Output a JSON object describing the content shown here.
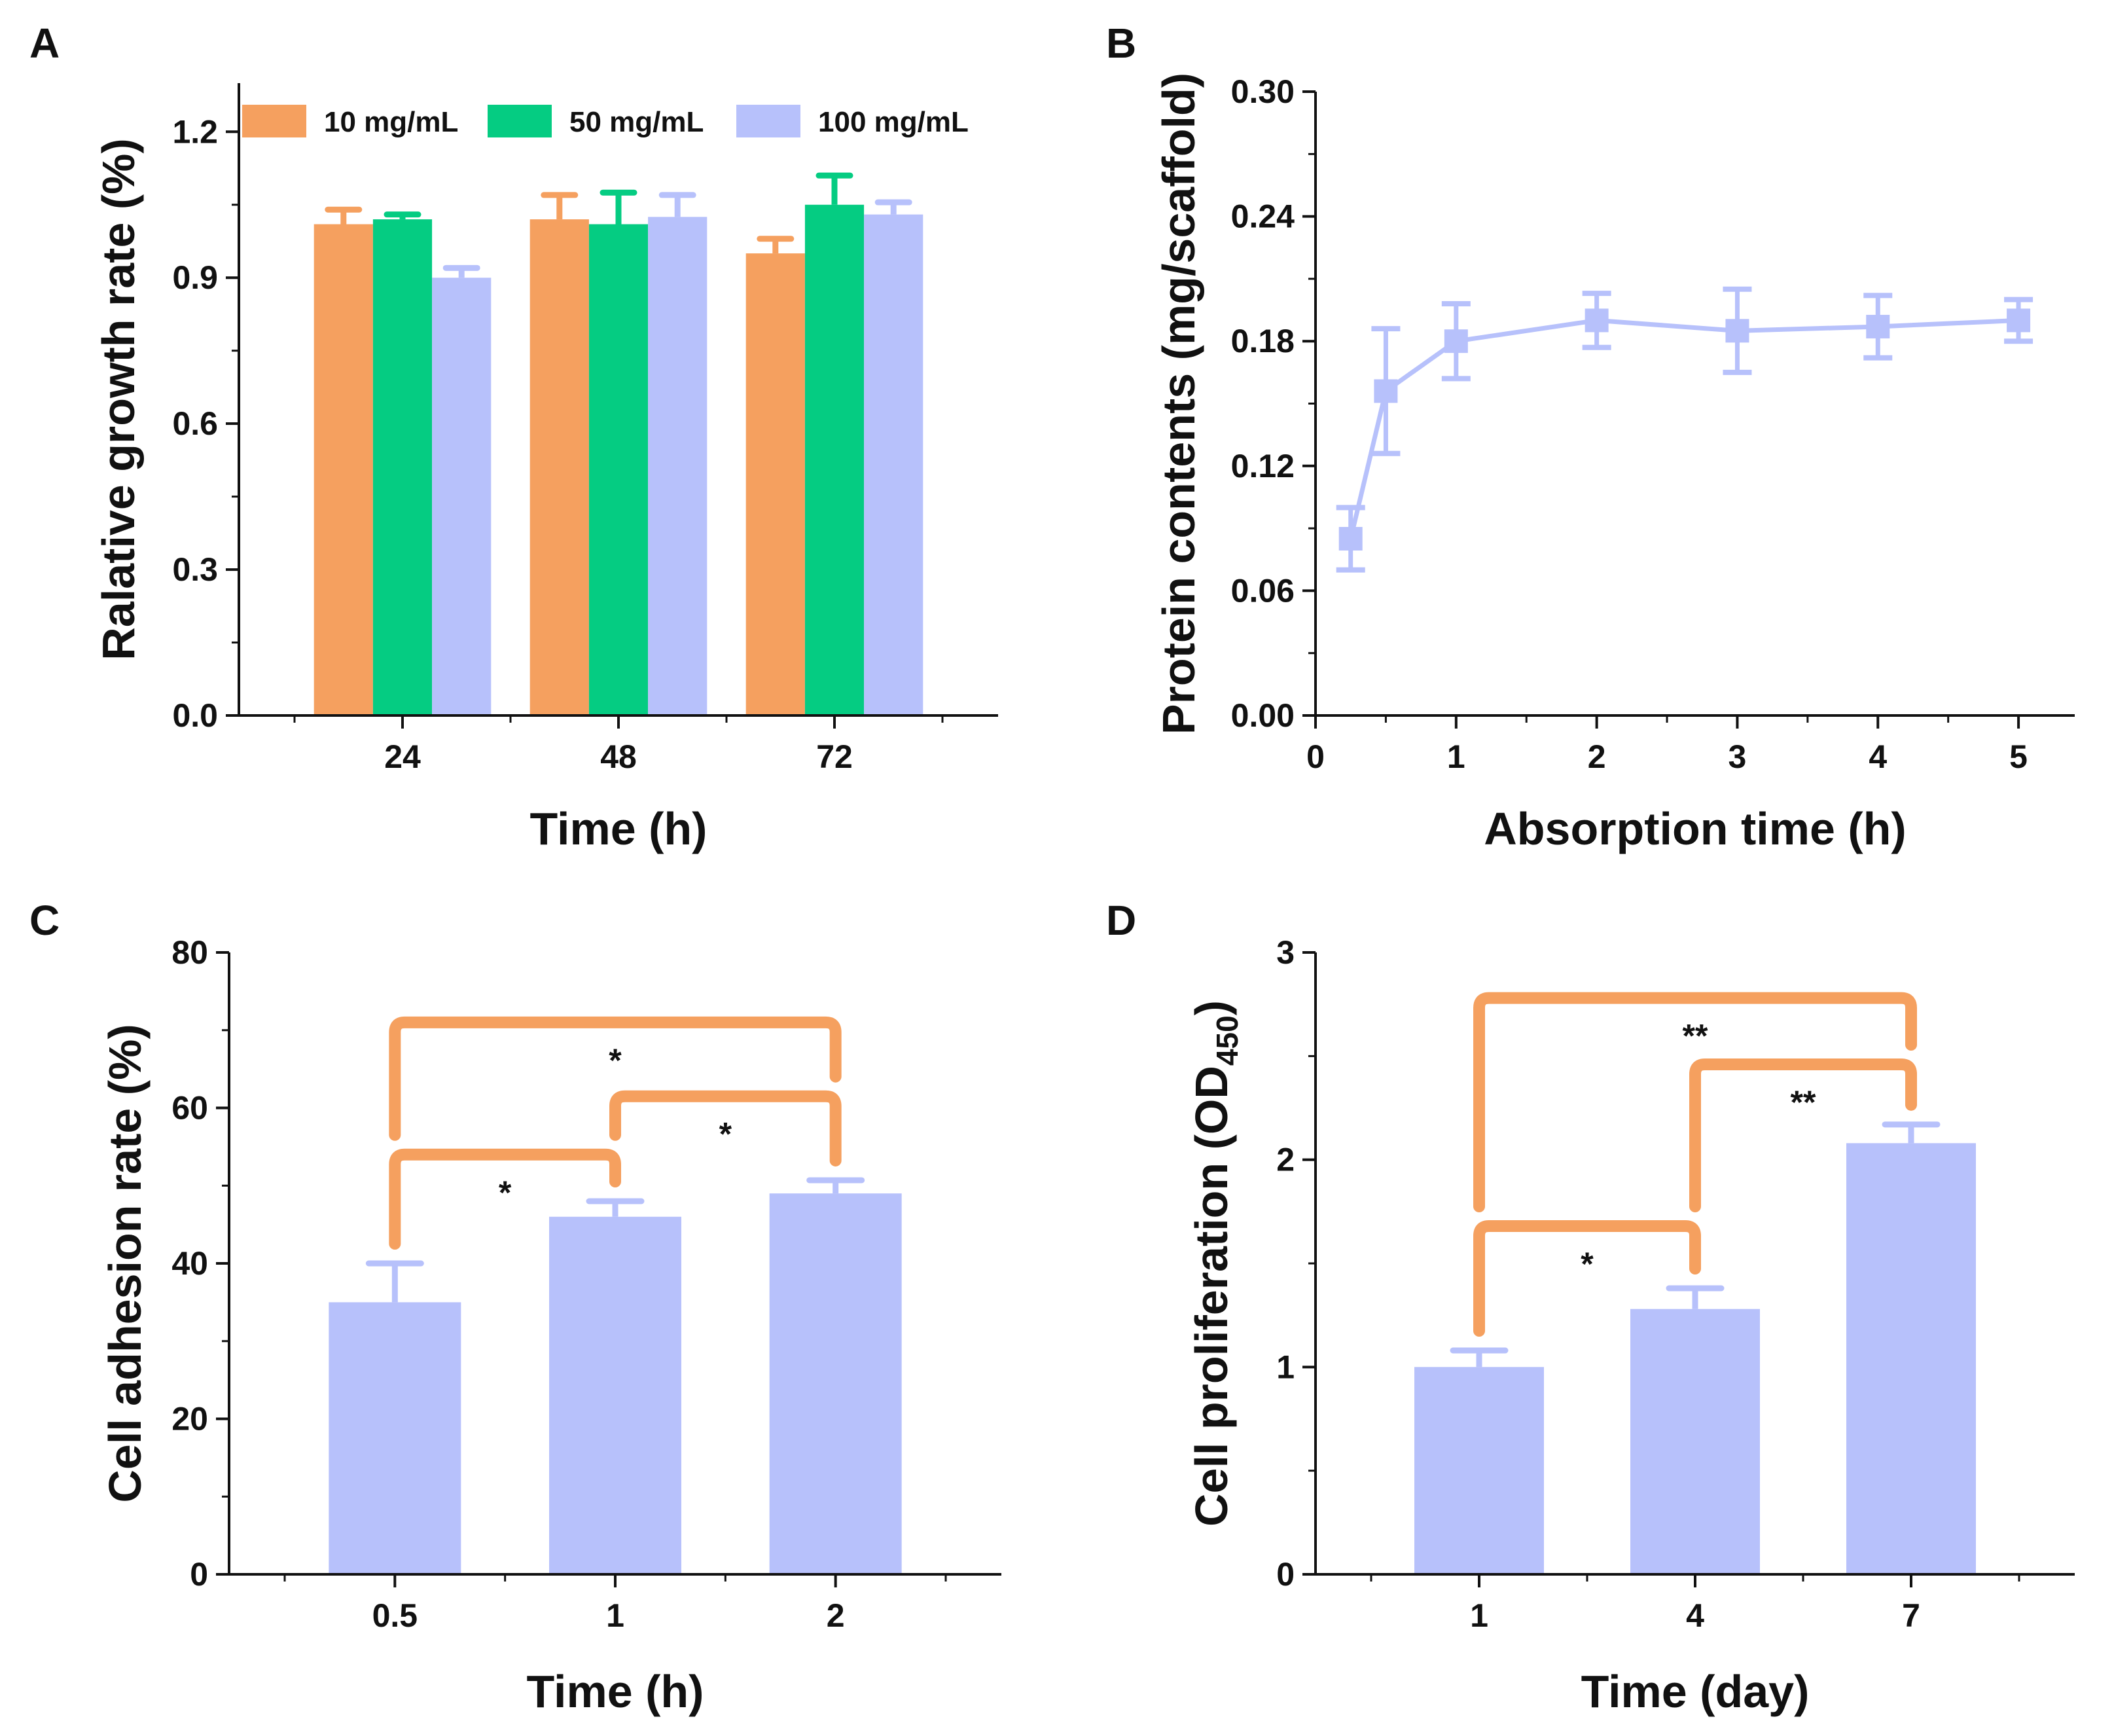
{
  "figure_title": "",
  "chart_data": [
    {
      "panel": "A",
      "type": "bar",
      "xlabel": "Time (h)",
      "ylabel": "Ralative growth rate (%)",
      "categories": [
        "24",
        "48",
        "72"
      ],
      "ylim": [
        0,
        1.3
      ],
      "yticks": [
        0.0,
        0.3,
        0.6,
        0.9,
        1.2
      ],
      "ytick_labels": [
        "0.0",
        "0.3",
        "0.6",
        "0.9",
        "1.2"
      ],
      "legend_position": "top",
      "series": [
        {
          "name": "10 mg/mL",
          "color": "#f5a05f",
          "values": [
            1.01,
            1.02,
            0.95
          ],
          "errors": [
            0.03,
            0.05,
            0.03
          ]
        },
        {
          "name": "50 mg/mL",
          "color": "#05cc82",
          "values": [
            1.02,
            1.01,
            1.05
          ],
          "errors": [
            0.01,
            0.065,
            0.06
          ]
        },
        {
          "name": "100 mg/mL",
          "color": "#b7c1fb",
          "values": [
            0.9,
            1.025,
            1.03
          ],
          "errors": [
            0.02,
            0.045,
            0.025
          ]
        }
      ]
    },
    {
      "panel": "B",
      "type": "line",
      "xlabel": "Absorption time (h)",
      "ylabel": "Protein contents (mg/scaffold)",
      "xlim": [
        0,
        5.4
      ],
      "ylim": [
        0,
        0.3
      ],
      "xticks": [
        0,
        1,
        2,
        3,
        4,
        5
      ],
      "xtick_labels": [
        "0",
        "1",
        "2",
        "3",
        "4",
        "5"
      ],
      "yticks": [
        0.0,
        0.06,
        0.12,
        0.18,
        0.24,
        0.3
      ],
      "ytick_labels": [
        "0.00",
        "0.06",
        "0.12",
        "0.18",
        "0.24",
        "0.30"
      ],
      "series": [
        {
          "name": "Protein contents",
          "color": "#b7c1fb",
          "x": [
            0.25,
            0.5,
            1,
            2,
            3,
            4,
            5
          ],
          "y": [
            0.085,
            0.156,
            0.18,
            0.19,
            0.185,
            0.187,
            0.19
          ],
          "errors": [
            0.015,
            0.03,
            0.018,
            0.013,
            0.02,
            0.015,
            0.01
          ]
        }
      ]
    },
    {
      "panel": "C",
      "type": "bar",
      "xlabel": "Time (h)",
      "ylabel": "Cell adhesion rate (%)",
      "categories": [
        "0.5",
        "1",
        "2"
      ],
      "ylim": [
        0,
        80
      ],
      "yticks": [
        0,
        20,
        40,
        60,
        80
      ],
      "ytick_labels": [
        "0",
        "20",
        "40",
        "60",
        "80"
      ],
      "series": [
        {
          "name": "Cell adhesion rate",
          "color": "#b7c1fb",
          "values": [
            35,
            46,
            49
          ],
          "errors": [
            5,
            2,
            1.7
          ]
        }
      ],
      "annotations": [
        {
          "from": 0,
          "to": 1,
          "label": "*",
          "level": 54
        },
        {
          "from": 1,
          "to": 2,
          "label": "*",
          "level": 61.5
        },
        {
          "from": 0,
          "to": 2,
          "label": "*",
          "level": 71
        }
      ]
    },
    {
      "panel": "D",
      "type": "bar",
      "xlabel": "Time (day)",
      "ylabel": "Cell proliferation (OD",
      "ylabel_subscript": "450",
      "ylabel_suffix": ")",
      "categories": [
        "1",
        "4",
        "7"
      ],
      "ylim": [
        0,
        3
      ],
      "yticks": [
        0,
        1,
        2,
        3
      ],
      "ytick_labels": [
        "0",
        "1",
        "2",
        "3"
      ],
      "series": [
        {
          "name": "Cell proliferation",
          "color": "#b7c1fb",
          "values": [
            1.0,
            1.28,
            2.08
          ],
          "errors": [
            0.08,
            0.1,
            0.09
          ]
        }
      ],
      "annotations": [
        {
          "from": 0,
          "to": 1,
          "label": "*",
          "level": 1.68
        },
        {
          "from": 1,
          "to": 2,
          "label": "**",
          "level": 2.46
        },
        {
          "from": 0,
          "to": 2,
          "label": "**",
          "level": 2.78
        }
      ]
    }
  ]
}
